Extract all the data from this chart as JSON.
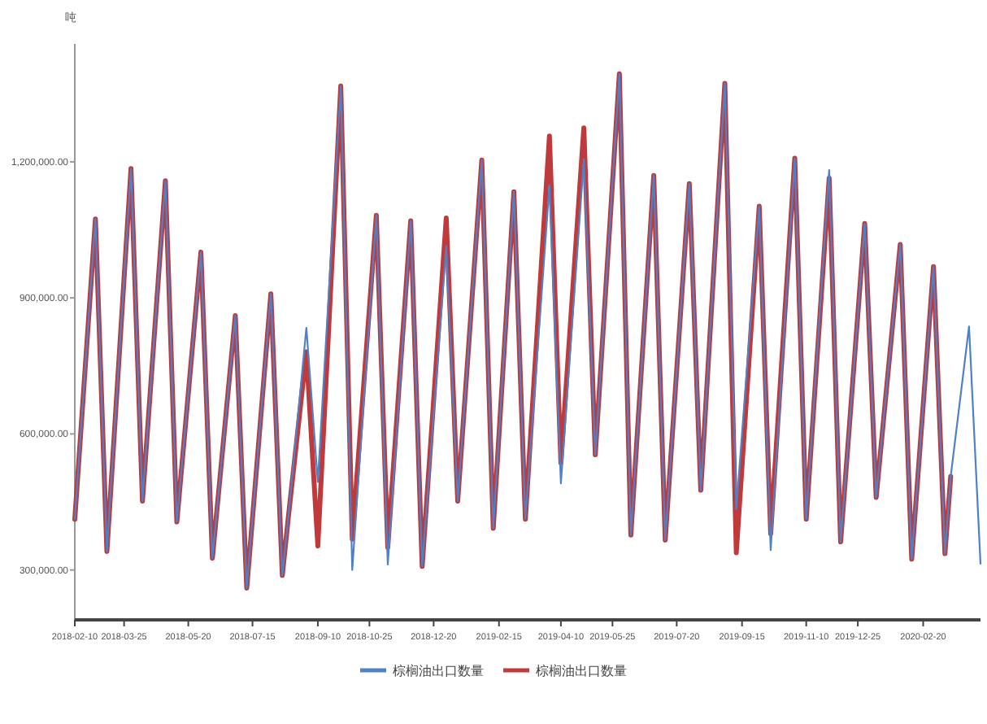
{
  "chart_data": {
    "type": "line",
    "ylabel": "吨",
    "x": [
      "2018-02-10",
      "2018-02-28",
      "2018-03-10",
      "2018-03-31",
      "2018-04-10",
      "2018-04-30",
      "2018-05-10",
      "2018-05-31",
      "2018-06-10",
      "2018-06-30",
      "2018-07-10",
      "2018-07-31",
      "2018-08-10",
      "2018-08-15",
      "2018-08-31",
      "2018-09-10",
      "2018-09-30",
      "2018-10-10",
      "2018-10-31",
      "2018-11-10",
      "2018-11-30",
      "2018-12-10",
      "2018-12-31",
      "2019-01-10",
      "2019-01-31",
      "2019-02-10",
      "2019-02-28",
      "2019-03-10",
      "2019-03-31",
      "2019-04-10",
      "2019-04-30",
      "2019-05-10",
      "2019-05-31",
      "2019-06-10",
      "2019-06-30",
      "2019-07-10",
      "2019-07-31",
      "2019-08-10",
      "2019-08-31",
      "2019-09-10",
      "2019-09-30",
      "2019-10-10",
      "2019-10-31",
      "2019-11-10",
      "2019-11-30",
      "2019-12-10",
      "2019-12-31",
      "2020-01-10",
      "2020-01-31",
      "2020-02-10",
      "2020-02-29",
      "2020-03-10",
      "2020-03-15",
      "2020-03-31",
      "2020-04-10"
    ],
    "series": [
      {
        "name": "棕榈油出口数量",
        "color": "#4f81c7",
        "values": [
          412000,
          1074000,
          341000,
          1185000,
          452000,
          1158000,
          406000,
          1001000,
          326000,
          861000,
          260000,
          909000,
          288000,
          410000,
          834000,
          494000,
          1367000,
          300000,
          1082000,
          312000,
          1070000,
          308000,
          1014000,
          452000,
          1204000,
          392000,
          1134000,
          412000,
          1148000,
          491000,
          1206000,
          554000,
          1394000,
          377000,
          1170000,
          366000,
          1152000,
          476000,
          1373000,
          434000,
          1102000,
          344000,
          1208000,
          412000,
          1182000,
          362000,
          1064000,
          460000,
          1018000,
          324000,
          969000,
          336000,
          506000,
          837000,
          314000
        ]
      },
      {
        "name": "棕榈油出口数量",
        "color": "#c0393b",
        "values": [
          412000,
          1074000,
          341000,
          1185000,
          452000,
          1158000,
          406000,
          1001000,
          326000,
          861000,
          260000,
          909000,
          288000,
          410000,
          781000,
          353000,
          1367000,
          368000,
          1082000,
          350000,
          1070000,
          308000,
          1076000,
          452000,
          1204000,
          392000,
          1134000,
          412000,
          1257000,
          536000,
          1275000,
          554000,
          1394000,
          377000,
          1170000,
          366000,
          1152000,
          476000,
          1373000,
          338000,
          1102000,
          380000,
          1208000,
          412000,
          1164000,
          362000,
          1064000,
          460000,
          1018000,
          324000,
          969000,
          336000,
          506000,
          null,
          null
        ]
      }
    ],
    "xlim": [
      "2018-02-10",
      "2020-04-10"
    ],
    "xticks": [
      "2018-02-10",
      "2018-03-25",
      "2018-05-20",
      "2018-07-15",
      "2018-09-10",
      "2018-10-25",
      "2018-12-20",
      "2019-02-15",
      "2019-04-10",
      "2019-05-25",
      "2019-07-20",
      "2019-09-15",
      "2019-11-10",
      "2019-12-25",
      "2020-02-20"
    ],
    "ylim": [
      190000,
      1460000
    ],
    "yticks": [
      {
        "value": 300000,
        "label": "300,000.00"
      },
      {
        "value": 600000,
        "label": "600,000.00"
      },
      {
        "value": 900000,
        "label": "900,000.00"
      },
      {
        "value": 1200000,
        "label": "1,200,000.00"
      }
    ],
    "legend": "bottom",
    "marker": "none",
    "line_style": "solid"
  }
}
